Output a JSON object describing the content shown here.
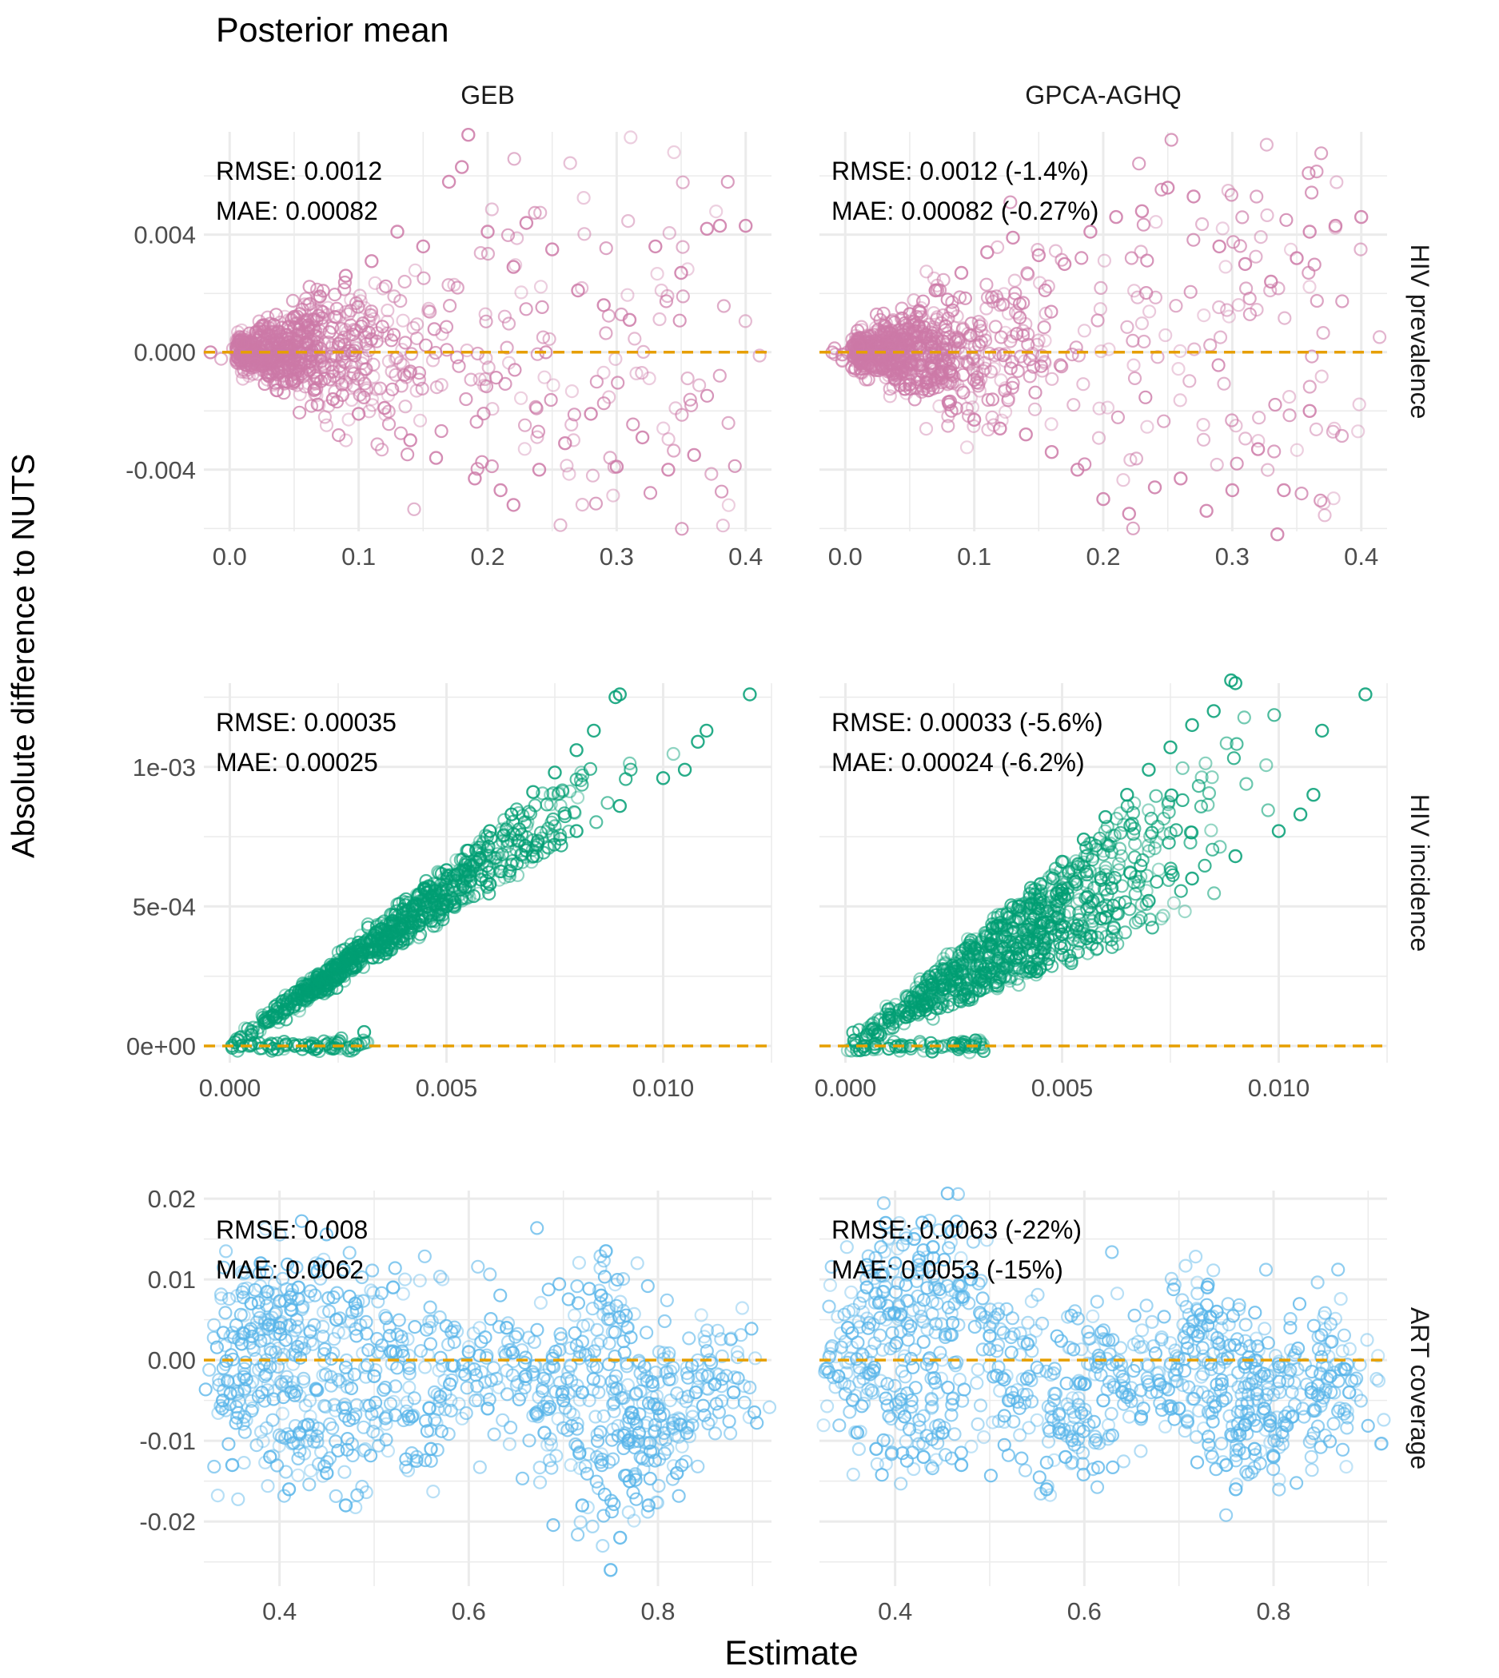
{
  "title": "Posterior mean",
  "y_label": "Absolute difference to NUTS",
  "x_label": "Estimate",
  "colors": {
    "hiv_prevalence": "#CC79A7",
    "hiv_incidence": "#009E73",
    "art_coverage": "#56B4E9",
    "reference_line": "#E69F00",
    "grid": "#EBEBEB",
    "tick_text": "#4D4D4D"
  },
  "chart_data": [
    {
      "type": "scatter",
      "column": "GEB",
      "row": "HIV prevalence",
      "stats": [
        "RMSE: 0.0012",
        "MAE: 0.00082"
      ],
      "xlim": [
        -0.02,
        0.42
      ],
      "ylim": [
        -0.0061,
        0.0075
      ],
      "x_ticks": [
        0.0,
        0.1,
        0.2,
        0.3,
        0.4
      ],
      "x_tick_labels": [
        "0.0",
        "0.1",
        "0.2",
        "0.3",
        "0.4"
      ],
      "y_ticks": [
        -0.004,
        0.0,
        0.004
      ],
      "y_tick_labels": [
        "-0.004",
        "0.000",
        "0.004"
      ],
      "reference_y": 0,
      "points": [
        [
          0.01,
          0.0003
        ],
        [
          0.02,
          -0.0004
        ],
        [
          0.03,
          0.0006
        ],
        [
          0.05,
          0.0012
        ],
        [
          0.05,
          -0.001
        ],
        [
          0.07,
          0.0019
        ],
        [
          0.08,
          -0.0016
        ],
        [
          0.09,
          0.0026
        ],
        [
          0.1,
          -0.0021
        ],
        [
          0.11,
          0.0031
        ],
        [
          0.12,
          -0.0019
        ],
        [
          0.13,
          0.0041
        ],
        [
          0.14,
          -0.003
        ],
        [
          0.15,
          0.0036
        ],
        [
          0.16,
          -0.0036
        ],
        [
          0.17,
          0.0058
        ],
        [
          0.18,
          0.0063
        ],
        [
          0.185,
          0.0074
        ],
        [
          0.19,
          -0.0043
        ],
        [
          0.2,
          0.0041
        ],
        [
          0.21,
          -0.0047
        ],
        [
          0.22,
          0.0029
        ],
        [
          0.22,
          -0.0052
        ],
        [
          0.23,
          0.0044
        ],
        [
          0.24,
          -0.004
        ],
        [
          0.25,
          0.0035
        ],
        [
          0.26,
          -0.0031
        ],
        [
          0.27,
          0.0021
        ],
        [
          0.28,
          -0.0021
        ],
        [
          0.29,
          0.0016
        ],
        [
          0.3,
          -0.0039
        ],
        [
          0.31,
          0.0011
        ],
        [
          0.32,
          -0.0029
        ],
        [
          0.33,
          0.0036
        ],
        [
          0.34,
          -0.004
        ],
        [
          0.35,
          0.0027
        ],
        [
          0.36,
          -0.0035
        ],
        [
          0.37,
          0.0042
        ],
        [
          0.38,
          0.0043
        ],
        [
          0.4,
          0.0043
        ]
      ]
    },
    {
      "type": "scatter",
      "column": "GPCA-AGHQ",
      "row": "HIV prevalence",
      "stats": [
        "RMSE: 0.0012 (-1.4%)",
        "MAE: 0.00082 (-0.27%)"
      ],
      "xlim": [
        -0.02,
        0.42
      ],
      "ylim": [
        -0.0061,
        0.0075
      ],
      "x_ticks": [
        0.0,
        0.1,
        0.2,
        0.3,
        0.4
      ],
      "x_tick_labels": [
        "0.0",
        "0.1",
        "0.2",
        "0.3",
        "0.4"
      ],
      "y_ticks": [
        -0.004,
        0.0,
        0.004
      ],
      "y_tick_labels": [
        "-0.004",
        "0.000",
        "0.004"
      ],
      "reference_y": 0,
      "points": [
        [
          0.01,
          0.0002
        ],
        [
          0.02,
          -0.0005
        ],
        [
          0.03,
          0.0007
        ],
        [
          0.05,
          0.0013
        ],
        [
          0.05,
          -0.0011
        ],
        [
          0.07,
          0.0021
        ],
        [
          0.08,
          -0.0017
        ],
        [
          0.09,
          0.0027
        ],
        [
          0.1,
          -0.0023
        ],
        [
          0.11,
          0.0034
        ],
        [
          0.12,
          -0.0026
        ],
        [
          0.13,
          0.0039
        ],
        [
          0.14,
          -0.0028
        ],
        [
          0.15,
          0.0033
        ],
        [
          0.16,
          -0.0034
        ],
        [
          0.17,
          0.003
        ],
        [
          0.18,
          -0.004
        ],
        [
          0.19,
          0.0041
        ],
        [
          0.2,
          -0.005
        ],
        [
          0.21,
          0.0046
        ],
        [
          0.22,
          -0.0055
        ],
        [
          0.23,
          0.0048
        ],
        [
          0.24,
          -0.0046
        ],
        [
          0.25,
          0.0056
        ],
        [
          0.26,
          -0.0043
        ],
        [
          0.27,
          0.0053
        ],
        [
          0.28,
          -0.0054
        ],
        [
          0.29,
          0.0036
        ],
        [
          0.3,
          -0.0047
        ],
        [
          0.31,
          0.003
        ],
        [
          0.32,
          -0.0033
        ],
        [
          0.33,
          0.0024
        ],
        [
          0.335,
          -0.0062
        ],
        [
          0.34,
          -0.0047
        ],
        [
          0.35,
          0.0032
        ],
        [
          0.36,
          0.0041
        ],
        [
          0.36,
          -0.002
        ],
        [
          0.38,
          0.0043
        ],
        [
          0.4,
          0.0046
        ]
      ]
    },
    {
      "type": "scatter",
      "column": "GEB",
      "row": "HIV incidence",
      "stats": [
        "RMSE: 0.00035",
        "MAE: 0.00025"
      ],
      "xlim": [
        -0.0006,
        0.0125
      ],
      "ylim": [
        -6e-05,
        0.0013
      ],
      "x_ticks": [
        0.0,
        0.005,
        0.01
      ],
      "x_tick_labels": [
        "0.000",
        "0.005",
        "0.010"
      ],
      "y_ticks": [
        0.0,
        0.0005,
        0.001
      ],
      "y_tick_labels": [
        "0e+00",
        "5e-04",
        "1e-03"
      ],
      "reference_y": 0,
      "points": [
        [
          0.0002,
          2e-05
        ],
        [
          0.0005,
          4e-05
        ],
        [
          0.001,
          0.00011
        ],
        [
          0.0015,
          0.00017
        ],
        [
          0.002,
          0.00023
        ],
        [
          0.0025,
          0.00029
        ],
        [
          0.003,
          0.00036
        ],
        [
          0.0035,
          0.00042
        ],
        [
          0.004,
          0.00049
        ],
        [
          0.0045,
          0.00056
        ],
        [
          0.005,
          0.00063
        ],
        [
          0.0055,
          0.0007
        ],
        [
          0.006,
          0.00077
        ],
        [
          0.0065,
          0.00083
        ],
        [
          0.007,
          0.00091
        ],
        [
          0.0075,
          0.00098
        ],
        [
          0.008,
          0.00106
        ],
        [
          0.0084,
          0.00113
        ],
        [
          0.0089,
          0.00125
        ],
        [
          0.009,
          0.00126
        ],
        [
          0.004,
          0.00042
        ],
        [
          0.005,
          0.0005
        ],
        [
          0.006,
          0.00058
        ],
        [
          0.007,
          0.00068
        ],
        [
          0.008,
          0.00077
        ],
        [
          0.009,
          0.00086
        ],
        [
          0.01,
          0.00096
        ],
        [
          0.0105,
          0.00099
        ],
        [
          0.0108,
          0.00109
        ],
        [
          0.011,
          0.00113
        ],
        [
          0.012,
          0.00126
        ],
        [
          0.0031,
          5e-05
        ],
        [
          0.0025,
          1e-05
        ],
        [
          0.002,
          -1e-05
        ],
        [
          0.0015,
          0.0
        ],
        [
          0.001,
          -1e-05
        ]
      ]
    },
    {
      "type": "scatter",
      "column": "GPCA-AGHQ",
      "row": "HIV incidence",
      "stats": [
        "RMSE: 0.00033 (-5.6%)",
        "MAE: 0.00024 (-6.2%)"
      ],
      "xlim": [
        -0.0006,
        0.0125
      ],
      "ylim": [
        -6e-05,
        0.0013
      ],
      "x_ticks": [
        0.0,
        0.005,
        0.01
      ],
      "x_tick_labels": [
        "0.000",
        "0.005",
        "0.010"
      ],
      "y_ticks": [
        0.0,
        0.0005,
        0.001
      ],
      "y_tick_labels": [
        "0e+00",
        "5e-04",
        "1e-03"
      ],
      "reference_y": 0,
      "points": [
        [
          0.0002,
          2e-05
        ],
        [
          0.0005,
          4e-05
        ],
        [
          0.001,
          0.0001
        ],
        [
          0.0015,
          0.00016
        ],
        [
          0.002,
          0.00022
        ],
        [
          0.0025,
          0.00028
        ],
        [
          0.003,
          0.00035
        ],
        [
          0.0035,
          0.00043
        ],
        [
          0.004,
          0.0005
        ],
        [
          0.0045,
          0.00058
        ],
        [
          0.005,
          0.00066
        ],
        [
          0.0055,
          0.00074
        ],
        [
          0.006,
          0.00082
        ],
        [
          0.0065,
          0.0009
        ],
        [
          0.007,
          0.00099
        ],
        [
          0.0075,
          0.00107
        ],
        [
          0.008,
          0.00115
        ],
        [
          0.0085,
          0.0012
        ],
        [
          0.0089,
          0.00131
        ],
        [
          0.009,
          0.0013
        ],
        [
          0.004,
          0.00033
        ],
        [
          0.005,
          0.0004
        ],
        [
          0.006,
          0.00046
        ],
        [
          0.007,
          0.00052
        ],
        [
          0.008,
          0.0006
        ],
        [
          0.009,
          0.00068
        ],
        [
          0.01,
          0.00077
        ],
        [
          0.0105,
          0.00083
        ],
        [
          0.011,
          0.00113
        ],
        [
          0.0108,
          0.0009
        ],
        [
          0.012,
          0.00126
        ],
        [
          0.0025,
          1e-05
        ],
        [
          0.002,
          -2e-05
        ],
        [
          0.0015,
          0.0
        ],
        [
          0.001,
          -1e-05
        ],
        [
          0.003,
          2e-05
        ]
      ]
    },
    {
      "type": "scatter",
      "column": "GEB",
      "row": "ART coverage",
      "stats": [
        "RMSE: 0.008",
        "MAE: 0.0062"
      ],
      "xlim": [
        0.32,
        0.92
      ],
      "ylim": [
        -0.028,
        0.021
      ],
      "x_ticks": [
        0.4,
        0.6,
        0.8
      ],
      "x_tick_labels": [
        "0.4",
        "0.6",
        "0.8"
      ],
      "y_ticks": [
        -0.02,
        -0.01,
        0.0,
        0.01,
        0.02
      ],
      "y_tick_labels": [
        "-0.02",
        "-0.01",
        "0.00",
        "0.01",
        "0.02"
      ],
      "reference_y": 0,
      "points": [
        [
          0.34,
          -0.005
        ],
        [
          0.35,
          -0.013
        ],
        [
          0.36,
          0.002
        ],
        [
          0.37,
          0.007
        ],
        [
          0.38,
          0.012
        ],
        [
          0.39,
          -0.012
        ],
        [
          0.4,
          0.004
        ],
        [
          0.41,
          -0.016
        ],
        [
          0.42,
          0.009
        ],
        [
          0.43,
          -0.008
        ],
        [
          0.44,
          0.011
        ],
        [
          0.45,
          -0.014
        ],
        [
          0.46,
          0.005
        ],
        [
          0.47,
          -0.018
        ],
        [
          0.48,
          0.007
        ],
        [
          0.5,
          -0.002
        ],
        [
          0.52,
          0.009
        ],
        [
          0.54,
          -0.007
        ],
        [
          0.56,
          -0.011
        ],
        [
          0.58,
          -0.003
        ],
        [
          0.6,
          0.001
        ],
        [
          0.62,
          -0.006
        ],
        [
          0.64,
          0.004
        ],
        [
          0.66,
          -0.002
        ],
        [
          0.68,
          -0.009
        ],
        [
          0.7,
          -0.005
        ],
        [
          0.72,
          -0.004
        ],
        [
          0.74,
          0.008
        ],
        [
          0.745,
          0.0135
        ],
        [
          0.75,
          -0.026
        ],
        [
          0.76,
          -0.022
        ],
        [
          0.77,
          -0.015
        ],
        [
          0.78,
          -0.009
        ],
        [
          0.79,
          -0.018
        ],
        [
          0.8,
          -0.006
        ],
        [
          0.82,
          -0.014
        ],
        [
          0.84,
          -0.004
        ],
        [
          0.86,
          -0.003
        ],
        [
          0.88,
          -0.004
        ],
        [
          0.72,
          -0.018
        ]
      ]
    },
    {
      "type": "scatter",
      "column": "GPCA-AGHQ",
      "row": "ART coverage",
      "stats": [
        "RMSE: 0.0063 (-22%)",
        "MAE: 0.0053 (-15%)"
      ],
      "xlim": [
        0.32,
        0.92
      ],
      "ylim": [
        -0.028,
        0.021
      ],
      "x_ticks": [
        0.4,
        0.6,
        0.8
      ],
      "x_tick_labels": [
        "0.4",
        "0.6",
        "0.8"
      ],
      "y_ticks": [
        -0.02,
        -0.01,
        0.0,
        0.01,
        0.02
      ],
      "y_tick_labels": [
        "-0.02",
        "-0.01",
        "0.00",
        "0.01",
        "0.02"
      ],
      "reference_y": 0,
      "points": [
        [
          0.34,
          -0.002
        ],
        [
          0.35,
          0.004
        ],
        [
          0.36,
          -0.009
        ],
        [
          0.37,
          0.009
        ],
        [
          0.38,
          -0.011
        ],
        [
          0.39,
          0.017
        ],
        [
          0.4,
          0.012
        ],
        [
          0.41,
          -0.007
        ],
        [
          0.42,
          0.015
        ],
        [
          0.43,
          -0.012
        ],
        [
          0.44,
          0.014
        ],
        [
          0.45,
          -0.009
        ],
        [
          0.46,
          0.016
        ],
        [
          0.47,
          -0.013
        ],
        [
          0.48,
          0.01
        ],
        [
          0.5,
          0.003
        ],
        [
          0.52,
          -0.005
        ],
        [
          0.54,
          0.002
        ],
        [
          0.56,
          -0.016
        ],
        [
          0.58,
          -0.012
        ],
        [
          0.6,
          -0.003
        ],
        [
          0.62,
          -0.005
        ],
        [
          0.64,
          -0.004
        ],
        [
          0.66,
          -0.007
        ],
        [
          0.68,
          -0.003
        ],
        [
          0.7,
          -0.006
        ],
        [
          0.72,
          0.003
        ],
        [
          0.73,
          0.009
        ],
        [
          0.74,
          0.006
        ],
        [
          0.75,
          -0.013
        ],
        [
          0.76,
          -0.016
        ],
        [
          0.77,
          -0.008
        ],
        [
          0.78,
          -0.011
        ],
        [
          0.79,
          -0.006
        ],
        [
          0.8,
          -0.012
        ],
        [
          0.82,
          -0.007
        ],
        [
          0.84,
          -0.004
        ],
        [
          0.86,
          -0.002
        ],
        [
          0.88,
          -0.004
        ]
      ]
    }
  ]
}
